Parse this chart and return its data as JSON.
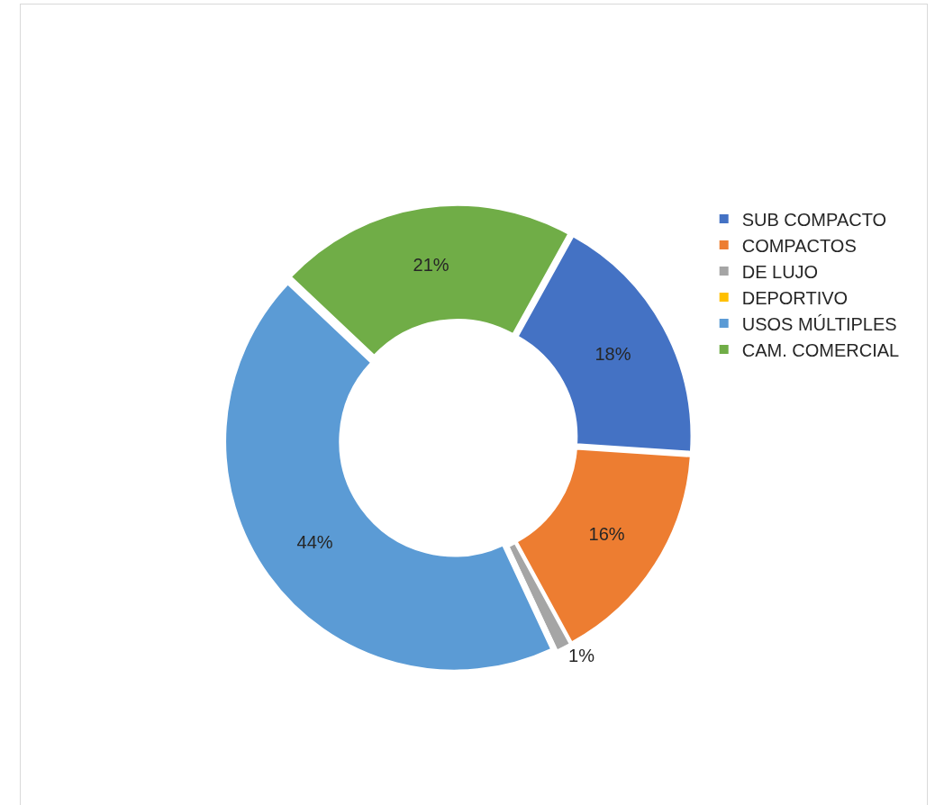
{
  "chart_data": {
    "type": "donut",
    "categories": [
      "SUB COMPACTO",
      "COMPACTOS",
      "DE LUJO",
      "DEPORTIVO",
      "USOS MÚLTIPLES",
      "CAM. COMERCIAL"
    ],
    "values": [
      18,
      16,
      1,
      0,
      44,
      21
    ],
    "value_labels": [
      "18%",
      "16%",
      "1%",
      null,
      "44%",
      "21%"
    ],
    "colors": [
      "#4472c4",
      "#ed7d31",
      "#a5a5a5",
      "#ffc000",
      "#5b9bd5",
      "#70ad47"
    ],
    "legend": "right"
  }
}
